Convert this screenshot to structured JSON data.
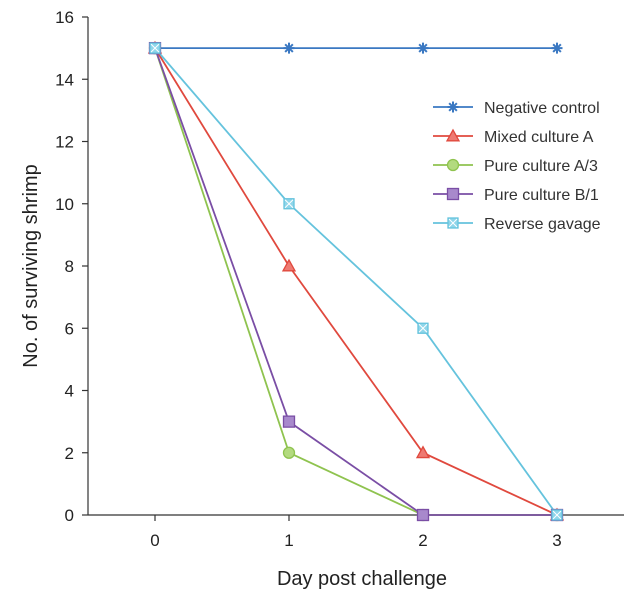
{
  "chart_data": {
    "type": "line",
    "title": "",
    "xlabel": "Day post challenge",
    "ylabel": "No. of surviving shrimp",
    "x": [
      0,
      1,
      2,
      3
    ],
    "xticks": [
      "0",
      "1",
      "2",
      "3"
    ],
    "yticks": [
      "0",
      "2",
      "4",
      "6",
      "8",
      "10",
      "12",
      "14",
      "16"
    ],
    "xlim": [
      -0.5,
      3.5
    ],
    "ylim": [
      0,
      16
    ],
    "grid": false,
    "legend_position": "right",
    "series": [
      {
        "name": "Negative control",
        "values": [
          15,
          15,
          15,
          15
        ],
        "color": "#3a78c2",
        "marker": "star",
        "fill": "#5b93d6"
      },
      {
        "name": "Mixed culture A",
        "values": [
          15,
          8,
          2,
          0
        ],
        "color": "#e0493e",
        "marker": "triangle",
        "fill": "#ee7a72"
      },
      {
        "name": "Pure culture A/3",
        "values": [
          15,
          2,
          0,
          0
        ],
        "color": "#8fc34f",
        "marker": "circle",
        "fill": "#b3da7f"
      },
      {
        "name": "Pure culture B/1",
        "values": [
          15,
          3,
          0,
          0
        ],
        "color": "#7a4ea5",
        "marker": "square",
        "fill": "#a889cc"
      },
      {
        "name": "Reverse gavage",
        "values": [
          15,
          10,
          6,
          0
        ],
        "color": "#65c3dd",
        "marker": "square-x",
        "fill": "#8fd6ea"
      }
    ]
  }
}
